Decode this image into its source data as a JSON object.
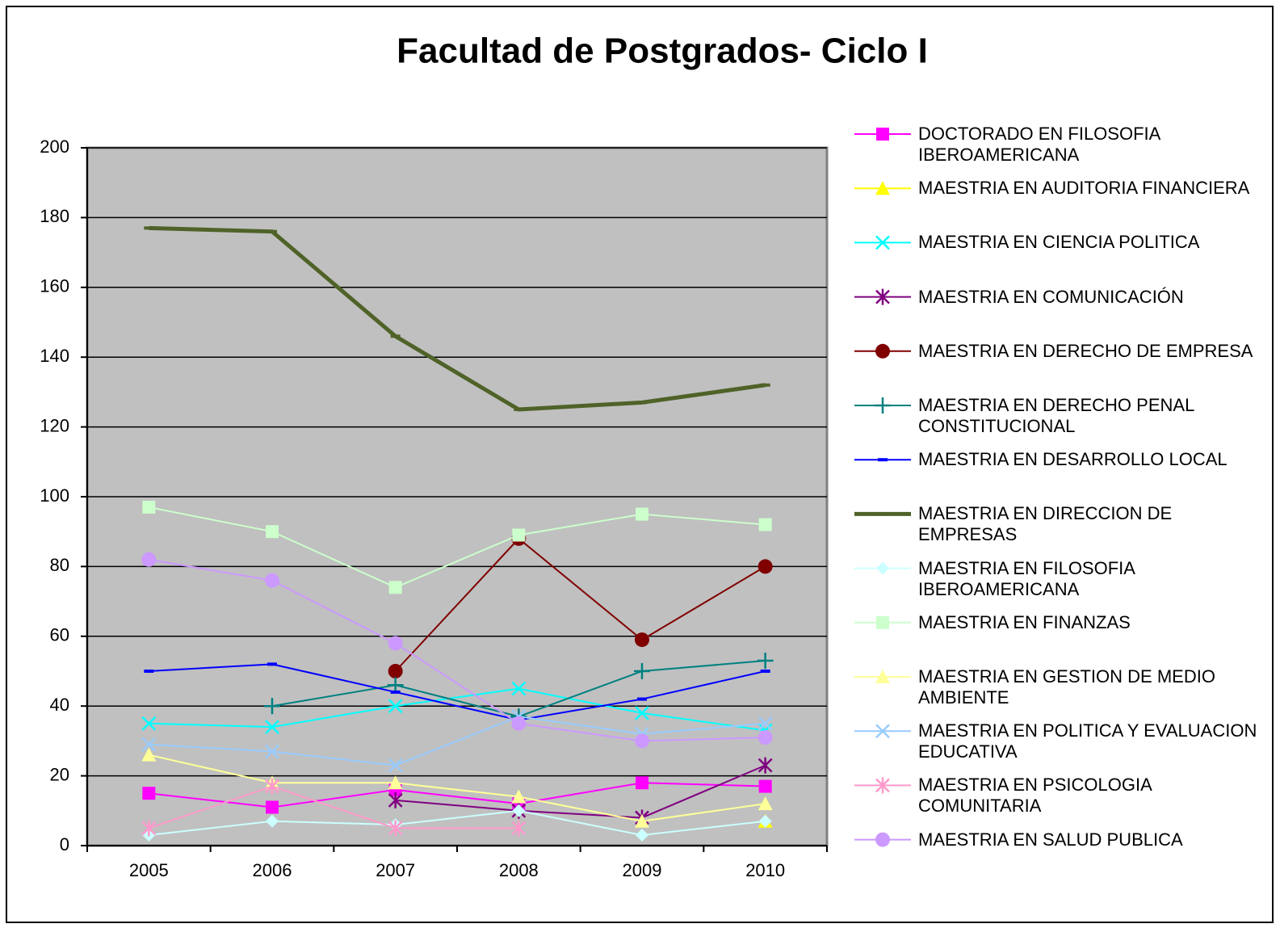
{
  "chart_data": {
    "type": "line",
    "title": "Facultad de Postgrados- Ciclo I",
    "categories": [
      "2005",
      "2006",
      "2007",
      "2008",
      "2009",
      "2010"
    ],
    "ylim": [
      0,
      200
    ],
    "yticks": [
      0,
      20,
      40,
      60,
      80,
      100,
      120,
      140,
      160,
      180,
      200
    ],
    "grid": true,
    "plot_background": "#C0C0C0",
    "legend": "right",
    "series": [
      {
        "name": "DOCTORADO EN FILOSOFIA IBEROAMERICANA",
        "color": "#FF00FF",
        "marker": "square",
        "values": [
          15,
          11,
          16,
          12,
          18,
          17
        ]
      },
      {
        "name": "MAESTRIA EN AUDITORIA FINANCIERA",
        "color": "#FFFF00",
        "marker": "triangle",
        "values": [
          null,
          null,
          null,
          null,
          null,
          7
        ]
      },
      {
        "name": "MAESTRIA EN CIENCIA POLITICA",
        "color": "#00FFFF",
        "marker": "x",
        "values": [
          35,
          34,
          40,
          45,
          38,
          33
        ]
      },
      {
        "name": "MAESTRIA EN COMUNICACIÓN",
        "color": "#800080",
        "marker": "star",
        "values": [
          null,
          null,
          13,
          10,
          8,
          23
        ]
      },
      {
        "name": "MAESTRIA EN DERECHO DE EMPRESA",
        "color": "#800000",
        "marker": "circle",
        "values": [
          null,
          null,
          50,
          88,
          59,
          80
        ]
      },
      {
        "name": "MAESTRIA EN DERECHO PENAL CONSTITUCIONAL",
        "color": "#008080",
        "marker": "plus",
        "values": [
          null,
          40,
          46,
          37,
          50,
          53
        ]
      },
      {
        "name": "MAESTRIA EN DESARROLLO LOCAL",
        "color": "#0000FF",
        "marker": "dash",
        "values": [
          50,
          52,
          44,
          36,
          42,
          50
        ]
      },
      {
        "name": "MAESTRIA EN DIRECCION DE EMPRESAS",
        "color": "#4F6228",
        "marker": "dash",
        "line_width": 5,
        "values": [
          177,
          176,
          146,
          125,
          127,
          132
        ]
      },
      {
        "name": "MAESTRIA EN FILOSOFIA IBEROAMERICANA",
        "color": "#CCFFFF",
        "marker": "diamond",
        "values": [
          3,
          7,
          6,
          10,
          3,
          7
        ]
      },
      {
        "name": "MAESTRIA EN FINANZAS",
        "color": "#CCFFCC",
        "marker": "square",
        "values": [
          97,
          90,
          74,
          89,
          95,
          92
        ]
      },
      {
        "name": "MAESTRIA EN GESTION DE MEDIO AMBIENTE",
        "color": "#FFFF99",
        "marker": "triangle",
        "values": [
          26,
          18,
          18,
          14,
          7,
          12
        ]
      },
      {
        "name": "MAESTRIA EN POLITICA Y EVALUACION EDUCATIVA",
        "color": "#99CCFF",
        "marker": "x",
        "values": [
          29,
          27,
          23,
          37,
          32,
          35
        ]
      },
      {
        "name": "MAESTRIA EN PSICOLOGIA COMUNITARIA",
        "color": "#FF99CC",
        "marker": "star",
        "values": [
          5,
          17,
          5,
          5,
          null,
          null
        ]
      },
      {
        "name": "MAESTRIA EN SALUD PUBLICA",
        "color": "#CC99FF",
        "marker": "circle",
        "values": [
          82,
          76,
          58,
          35,
          30,
          31
        ]
      }
    ]
  }
}
